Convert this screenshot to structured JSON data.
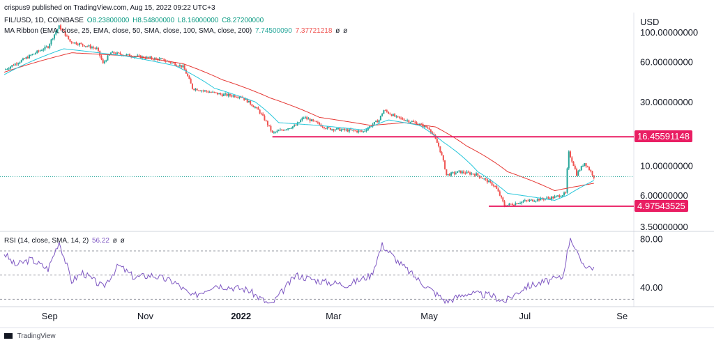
{
  "header": {
    "published": "crispus9 published on TradingView.com, Aug 15, 2022 09:22 UTC+3",
    "symbol": "FIL/USD, 1D, COINBASE",
    "ohlc": {
      "o": "O8.23800000",
      "h": "H8.54800000",
      "l": "L8.16000000",
      "c": "C8.27200000"
    },
    "ma_label": "MA Ribbon (EMA, close, 25, EMA, close, 50, SMA, close, 100, SMA, close, 200)",
    "ma_values": [
      "7.74500090",
      "7.37721218",
      "ø",
      "ø"
    ],
    "rsi_label": "RSI (14, close, SMA, 14, 2)",
    "rsi_values": [
      "56.22",
      "ø",
      "ø"
    ]
  },
  "footer": {
    "brand": "TradingView"
  },
  "colors": {
    "up": "#26a69a",
    "down": "#ef5350",
    "ema25": "#26c6da",
    "ema50": "#e53935",
    "rsi": "#7e57c2",
    "level": "#e91e63"
  },
  "chart_data": [
    {
      "type": "candlestick",
      "yscale": "log",
      "ylabel": "USD",
      "ylim": [
        3.3,
        140
      ],
      "y_ticks": [
        "100.00000000",
        "60.00000000",
        "30.00000000",
        "10.00000000",
        "6.00000000",
        "3.50000000"
      ],
      "x_ticks": [
        "Sep",
        "Nov",
        "2022",
        "Mar",
        "May",
        "Jul",
        "Se"
      ],
      "x_range": [
        "2021-08-03",
        "2022-09-20"
      ],
      "price_anchors": [
        [
          "2021-08-03",
          52
        ],
        [
          "2021-08-15",
          62
        ],
        [
          "2021-08-31",
          78
        ],
        [
          "2021-09-07",
          110
        ],
        [
          "2021-09-14",
          85
        ],
        [
          "2021-10-01",
          75
        ],
        [
          "2021-10-05",
          58
        ],
        [
          "2021-10-10",
          70
        ],
        [
          "2021-10-25",
          66
        ],
        [
          "2021-11-12",
          62
        ],
        [
          "2021-11-25",
          55
        ],
        [
          "2021-12-01",
          38
        ],
        [
          "2021-12-10",
          36
        ],
        [
          "2021-12-20",
          34
        ],
        [
          "2022-01-01",
          33
        ],
        [
          "2022-01-12",
          26
        ],
        [
          "2022-01-21",
          17.5
        ],
        [
          "2022-02-05",
          20
        ],
        [
          "2022-02-10",
          23
        ],
        [
          "2022-02-25",
          19
        ],
        [
          "2022-03-07",
          18.5
        ],
        [
          "2022-03-20",
          18
        ],
        [
          "2022-03-30",
          22
        ],
        [
          "2022-04-02",
          26
        ],
        [
          "2022-04-10",
          23
        ],
        [
          "2022-04-22",
          21
        ],
        [
          "2022-05-01",
          19
        ],
        [
          "2022-05-07",
          14
        ],
        [
          "2022-05-12",
          8.5
        ],
        [
          "2022-05-20",
          9
        ],
        [
          "2022-05-31",
          8.6
        ],
        [
          "2022-06-12",
          7
        ],
        [
          "2022-06-18",
          5
        ],
        [
          "2022-06-30",
          5.4
        ],
        [
          "2022-07-10",
          5.6
        ],
        [
          "2022-07-20",
          5.8
        ],
        [
          "2022-07-27",
          6.2
        ],
        [
          "2022-07-29",
          12.5
        ],
        [
          "2022-08-03",
          8.6
        ],
        [
          "2022-08-08",
          10.5
        ],
        [
          "2022-08-14",
          8.27
        ]
      ],
      "ema25_anchors": [
        [
          "2021-08-03",
          48
        ],
        [
          "2021-09-10",
          75
        ],
        [
          "2021-10-20",
          66
        ],
        [
          "2021-11-20",
          56
        ],
        [
          "2021-12-15",
          38
        ],
        [
          "2022-01-10",
          30
        ],
        [
          "2022-01-25",
          21
        ],
        [
          "2022-02-20",
          20
        ],
        [
          "2022-03-20",
          18.5
        ],
        [
          "2022-04-05",
          22
        ],
        [
          "2022-04-25",
          20
        ],
        [
          "2022-05-10",
          15
        ],
        [
          "2022-06-01",
          9
        ],
        [
          "2022-06-20",
          6.2
        ],
        [
          "2022-07-20",
          5.5
        ],
        [
          "2022-07-28",
          6
        ],
        [
          "2022-08-14",
          7.745
        ]
      ],
      "ema50_anchors": [
        [
          "2021-08-03",
          50
        ],
        [
          "2021-09-15",
          70
        ],
        [
          "2021-10-25",
          66
        ],
        [
          "2021-11-25",
          58
        ],
        [
          "2021-12-20",
          44
        ],
        [
          "2022-01-20",
          32
        ],
        [
          "2022-02-20",
          23
        ],
        [
          "2022-03-25",
          20
        ],
        [
          "2022-04-15",
          21
        ],
        [
          "2022-05-05",
          19.5
        ],
        [
          "2022-05-25",
          14
        ],
        [
          "2022-06-20",
          9
        ],
        [
          "2022-07-20",
          6.5
        ],
        [
          "2022-08-14",
          7.377
        ]
      ],
      "level_lines": [
        {
          "value": 16.45591148,
          "label": "16.45591148",
          "from": "2022-01-21",
          "to": "2022-09-20"
        },
        {
          "value": 4.97543525,
          "label": "4.97543525",
          "from": "2022-06-08",
          "to": "2022-09-20"
        }
      ],
      "last_price_dotted": 8.27
    },
    {
      "type": "line",
      "title": "RSI",
      "ylim": [
        25,
        85
      ],
      "y_ticks": [
        "80.00",
        "40.00"
      ],
      "bands": [
        70,
        50,
        30
      ],
      "rsi_anchors": [
        [
          "2021-08-03",
          68
        ],
        [
          "2021-08-10",
          58
        ],
        [
          "2021-08-20",
          63
        ],
        [
          "2021-08-31",
          55
        ],
        [
          "2021-09-07",
          78
        ],
        [
          "2021-09-15",
          45
        ],
        [
          "2021-09-22",
          52
        ],
        [
          "2021-10-05",
          40
        ],
        [
          "2021-10-15",
          58
        ],
        [
          "2021-10-25",
          48
        ],
        [
          "2021-11-05",
          50
        ],
        [
          "2021-11-20",
          44
        ],
        [
          "2021-12-01",
          32
        ],
        [
          "2021-12-15",
          42
        ],
        [
          "2022-01-05",
          38
        ],
        [
          "2022-01-20",
          25
        ],
        [
          "2022-02-05",
          50
        ],
        [
          "2022-02-20",
          45
        ],
        [
          "2022-03-10",
          42
        ],
        [
          "2022-03-25",
          50
        ],
        [
          "2022-04-01",
          75
        ],
        [
          "2022-04-12",
          60
        ],
        [
          "2022-04-25",
          45
        ],
        [
          "2022-05-12",
          28
        ],
        [
          "2022-05-25",
          35
        ],
        [
          "2022-06-10",
          33
        ],
        [
          "2022-06-18",
          28
        ],
        [
          "2022-07-01",
          40
        ],
        [
          "2022-07-15",
          45
        ],
        [
          "2022-07-25",
          48
        ],
        [
          "2022-07-30",
          82
        ],
        [
          "2022-08-05",
          62
        ],
        [
          "2022-08-10",
          57
        ],
        [
          "2022-08-14",
          56.22
        ]
      ]
    }
  ]
}
